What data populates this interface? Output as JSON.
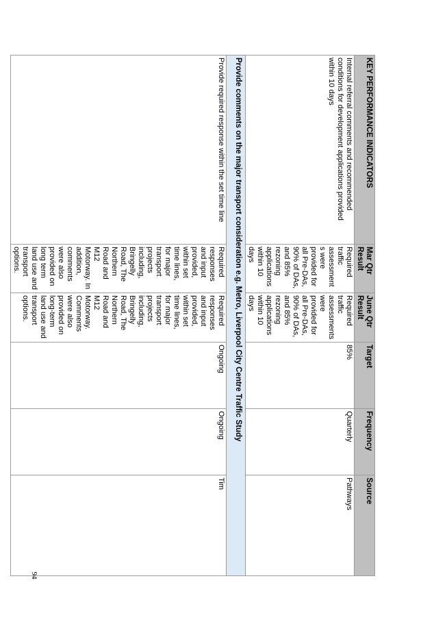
{
  "table": {
    "headers": {
      "kpi": "KEY PERFORMANCE INDICATORS",
      "mar": "Mar Qtr Result",
      "june": "June Qtr Result",
      "target": "Target",
      "frequency": "Frequency",
      "source": "Source"
    },
    "row1": {
      "kpi": "Internal referral comments and recommended conditions for development applications provided within 10 days",
      "mar": "Required traffic assessments were provided for all Pre-DAs, 90% of DAs, and 85% rezoning applications within 10 days",
      "june": "Required traffic assessments were provided for all Pre-DAs, 90% of DAs, and 85% rezoning applications within 10 days",
      "target": "85%",
      "frequency": "Quarterly",
      "source": "Pathways"
    },
    "section": "Provide comments on the major transport consideration e.g. Metro, Liverpool City Centre Traffic Study",
    "row2": {
      "kpi": "Provide required response within the set time line",
      "mar": "Required responses and input provided, within set time lines, for major transport projects including, Bringelly Road, The Northern Road and M12 Motorway. In addition, comments were also provided on long term land use and transport options.",
      "june": "Required responses and input provided, within set time lines, for major transport projects including, Bringelly Road, The Northern Road and M12 Motorway. Comments were also provided on long-term land use and transport options.",
      "target": "Ongoing",
      "frequency": "Ongoing",
      "source": "Tim"
    }
  },
  "page_number": "94"
}
